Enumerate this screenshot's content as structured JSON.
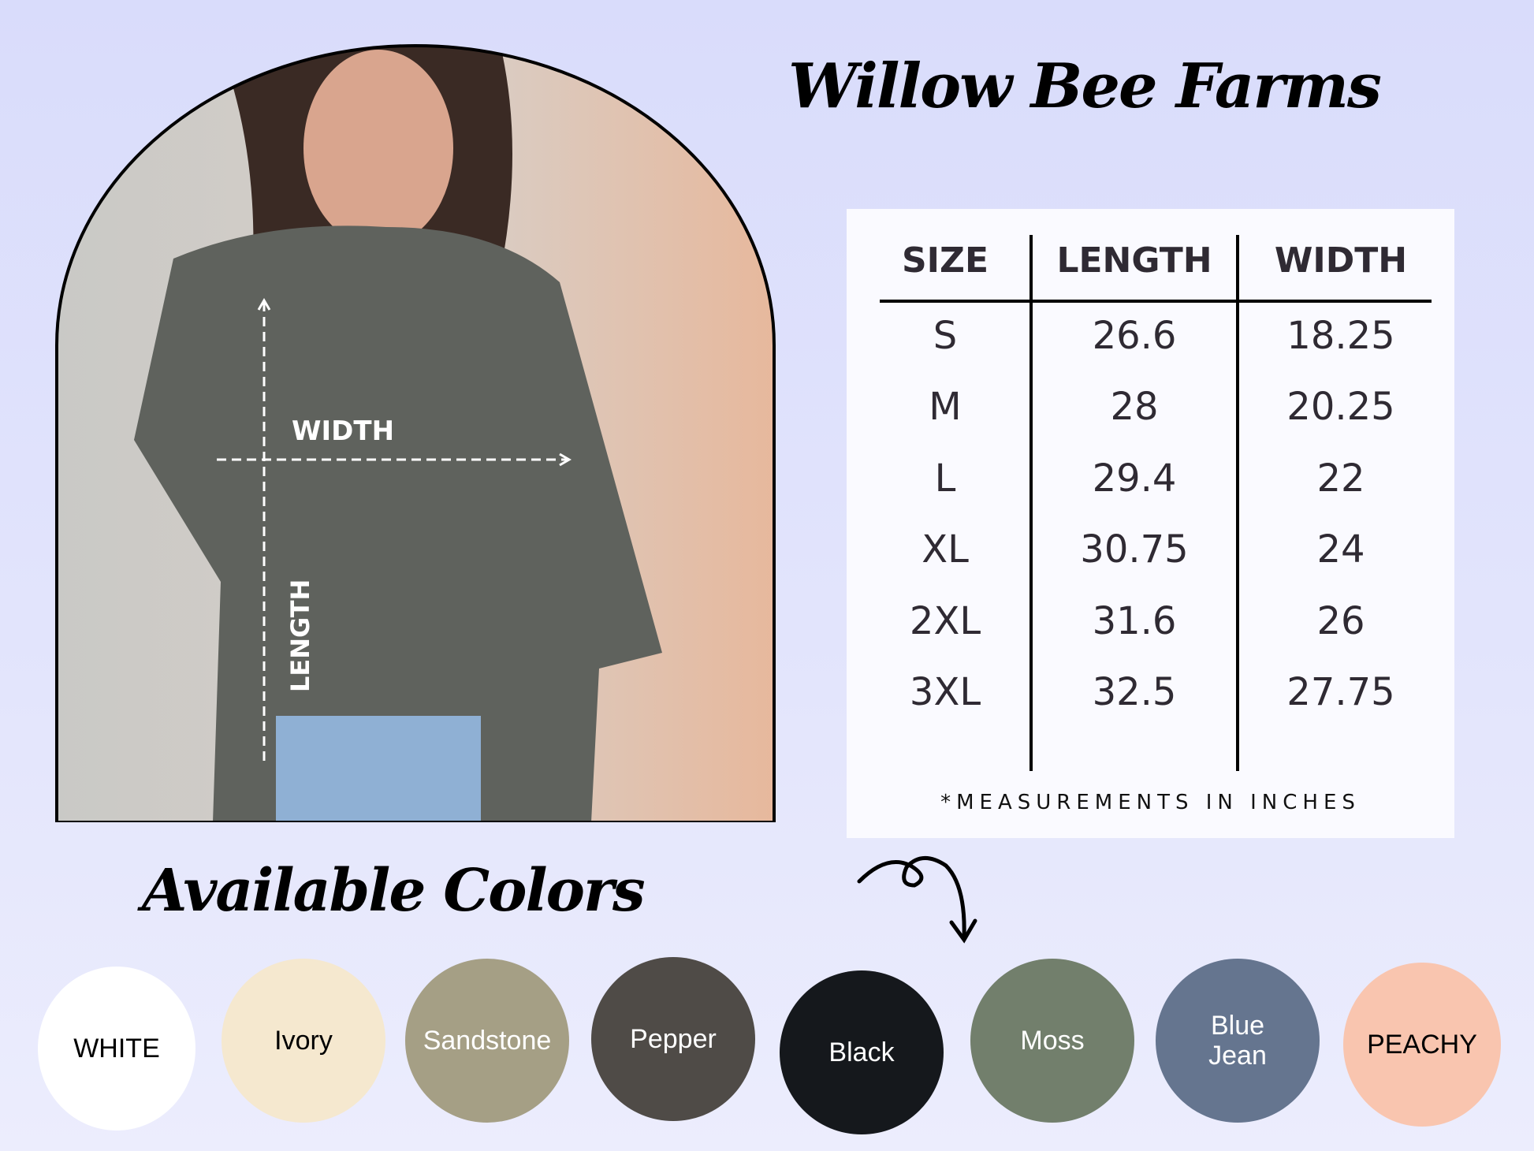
{
  "brand": {
    "title": "Willow Bee Farms"
  },
  "photo": {
    "width_label": "WIDTH",
    "length_label": "LENGTH"
  },
  "size_chart": {
    "headers": [
      "SIZE",
      "LENGTH",
      "WIDTH"
    ],
    "rows": [
      [
        "S",
        "26.6",
        "18.25"
      ],
      [
        "M",
        "28",
        "20.25"
      ],
      [
        "L",
        "29.4",
        "22"
      ],
      [
        "XL",
        "30.75",
        "24"
      ],
      [
        "2XL",
        "31.6",
        "26"
      ],
      [
        "3XL",
        "32.5",
        "27.75"
      ]
    ],
    "footnote": "*MEASUREMENTS IN INCHES"
  },
  "colors": {
    "title": "Available Colors",
    "arrow_icon": "curly-arrow-down-icon",
    "items": [
      {
        "label": "WHITE",
        "color": "#ffffff",
        "text": "#000000"
      },
      {
        "label": "Ivory",
        "color": "#f5e8cf",
        "text": "#000000"
      },
      {
        "label": "Sandstone",
        "color": "#a59f85",
        "text": "#ffffff"
      },
      {
        "label": "Pepper",
        "color": "#4f4b47",
        "text": "#ffffff"
      },
      {
        "label": "Black",
        "color": "#15181c",
        "text": "#ffffff"
      },
      {
        "label": "Moss",
        "color": "#727f6c",
        "text": "#ffffff"
      },
      {
        "label": "Blue Jean",
        "color": "#65758f",
        "text": "#ffffff"
      },
      {
        "label": "PEACHY",
        "color": "#f9c5af",
        "text": "#000000"
      }
    ]
  }
}
